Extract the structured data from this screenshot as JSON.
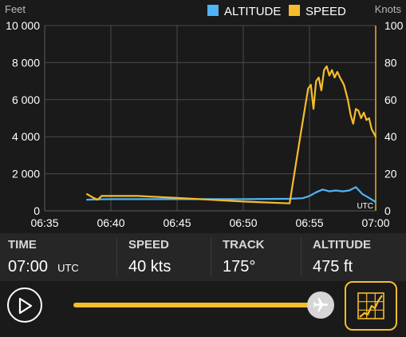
{
  "chart_data": {
    "type": "line",
    "left_axis_label": "Feet",
    "right_axis_label": "Knots",
    "left_ylim": [
      0,
      10000
    ],
    "right_ylim": [
      0,
      100
    ],
    "left_ticks": [
      "10 000",
      "8 000",
      "6 000",
      "4 000",
      "2 000",
      "0"
    ],
    "left_tick_values": [
      10000,
      8000,
      6000,
      4000,
      2000,
      0
    ],
    "right_ticks": [
      "100",
      "80",
      "60",
      "40",
      "20",
      "0"
    ],
    "right_tick_values": [
      100,
      80,
      60,
      40,
      20,
      0
    ],
    "x_ticks": [
      "06:35",
      "06:40",
      "06:45",
      "06:50",
      "06:55",
      "07:00"
    ],
    "x_tick_minutes": [
      35,
      40,
      45,
      50,
      55,
      60
    ],
    "xlim_minutes": [
      35,
      60
    ],
    "x_unit_label": "UTC",
    "grid": true,
    "legend_position": "top-right",
    "series": [
      {
        "name": "ALTITUDE",
        "axis": "left",
        "color": "#4fb3f4",
        "points": [
          [
            38.2,
            600
          ],
          [
            39.0,
            620
          ],
          [
            40.0,
            630
          ],
          [
            45.0,
            630
          ],
          [
            50.0,
            630
          ],
          [
            53.5,
            650
          ],
          [
            54.5,
            680
          ],
          [
            55.0,
            800
          ],
          [
            55.5,
            1000
          ],
          [
            56.0,
            1150
          ],
          [
            56.5,
            1050
          ],
          [
            57.0,
            1100
          ],
          [
            57.5,
            1050
          ],
          [
            58.0,
            1100
          ],
          [
            58.5,
            1280
          ],
          [
            59.0,
            900
          ],
          [
            59.5,
            700
          ],
          [
            60.0,
            480
          ]
        ]
      },
      {
        "name": "SPEED",
        "axis": "right",
        "color": "#f6bd2a",
        "points": [
          [
            38.2,
            9
          ],
          [
            38.7,
            7
          ],
          [
            39.0,
            6
          ],
          [
            39.3,
            8
          ],
          [
            40.0,
            8
          ],
          [
            42.0,
            8
          ],
          [
            45.0,
            7
          ],
          [
            50.0,
            5
          ],
          [
            53.5,
            4
          ],
          [
            54.3,
            40
          ],
          [
            54.9,
            66
          ],
          [
            55.1,
            68
          ],
          [
            55.3,
            55
          ],
          [
            55.5,
            70
          ],
          [
            55.7,
            72
          ],
          [
            55.9,
            65
          ],
          [
            56.1,
            76
          ],
          [
            56.3,
            78
          ],
          [
            56.5,
            73
          ],
          [
            56.7,
            76
          ],
          [
            56.9,
            72
          ],
          [
            57.1,
            75
          ],
          [
            57.3,
            72
          ],
          [
            57.6,
            68
          ],
          [
            57.9,
            60
          ],
          [
            58.1,
            52
          ],
          [
            58.3,
            47
          ],
          [
            58.5,
            55
          ],
          [
            58.7,
            54
          ],
          [
            58.9,
            50
          ],
          [
            59.1,
            53
          ],
          [
            59.3,
            49
          ],
          [
            59.5,
            50
          ],
          [
            59.7,
            44
          ],
          [
            60.0,
            40
          ]
        ]
      }
    ]
  },
  "info": {
    "time_label": "TIME",
    "time_value": "07:00",
    "time_unit": "UTC",
    "speed_label": "SPEED",
    "speed_value": "40 kts",
    "track_label": "TRACK",
    "track_value": "175°",
    "altitude_label": "ALTITUDE",
    "altitude_value": "475 ft"
  },
  "playback": {
    "position_fraction": 1.0
  },
  "icons": {
    "play": "play-icon",
    "airplane": "airplane-icon",
    "chart_toggle": "chart-toggle-icon"
  },
  "colors": {
    "accent": "#f6bd2a",
    "altitude": "#4fb3f4",
    "speed": "#f6bd2a",
    "background": "#1a1a1a",
    "panel": "#262626"
  }
}
